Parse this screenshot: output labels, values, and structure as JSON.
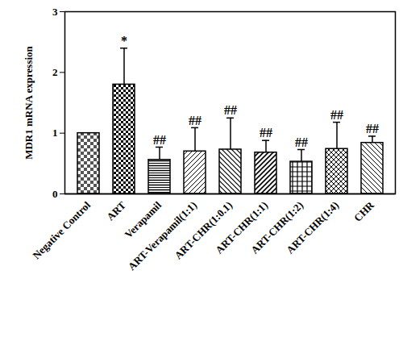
{
  "chart_data": {
    "type": "bar",
    "y_label": "MDR1 mRNA expression",
    "categories": [
      "Negative Control",
      "ART",
      "Verapamil",
      "ART-Verapamil(1:1)",
      "ART-CHR(1:0.1)",
      "ART-CHR(1:1)",
      "ART-CHR(1:2)",
      "ART-CHR(1:4)",
      "CHR"
    ],
    "values": [
      1.0,
      1.8,
      0.56,
      0.7,
      0.73,
      0.68,
      0.53,
      0.74,
      0.84
    ],
    "errors": [
      0,
      0.6,
      0.21,
      0.39,
      0.52,
      0.2,
      0.2,
      0.44,
      0.11
    ],
    "annotations": [
      null,
      "*",
      "##",
      "##",
      "##",
      "##",
      "##",
      "##",
      "##"
    ],
    "ylim": [
      0,
      3
    ],
    "yticks": [
      0,
      1,
      2,
      3
    ],
    "grid": false
  }
}
